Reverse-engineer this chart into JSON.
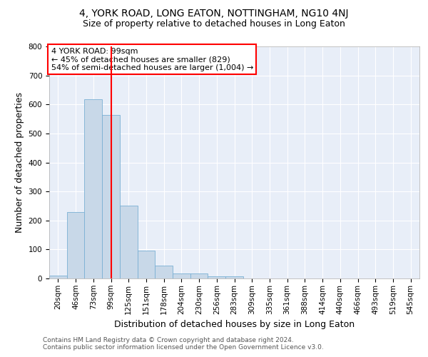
{
  "title": "4, YORK ROAD, LONG EATON, NOTTINGHAM, NG10 4NJ",
  "subtitle": "Size of property relative to detached houses in Long Eaton",
  "xlabel": "Distribution of detached houses by size in Long Eaton",
  "ylabel": "Number of detached properties",
  "categories": [
    "20sqm",
    "46sqm",
    "73sqm",
    "99sqm",
    "125sqm",
    "151sqm",
    "178sqm",
    "204sqm",
    "230sqm",
    "256sqm",
    "283sqm",
    "309sqm",
    "335sqm",
    "361sqm",
    "388sqm",
    "414sqm",
    "440sqm",
    "466sqm",
    "493sqm",
    "519sqm",
    "545sqm"
  ],
  "values": [
    10,
    228,
    618,
    563,
    252,
    96,
    44,
    18,
    18,
    8,
    8,
    0,
    0,
    0,
    0,
    0,
    0,
    0,
    0,
    0,
    0
  ],
  "bar_color": "#c8d8e8",
  "bar_edge_color": "#7ab0d4",
  "vline_x": 3,
  "vline_color": "red",
  "annotation_line1": "4 YORK ROAD: 99sqm",
  "annotation_line2": "← 45% of detached houses are smaller (829)",
  "annotation_line3": "54% of semi-detached houses are larger (1,004) →",
  "annotation_box_color": "white",
  "annotation_box_edge_color": "red",
  "ylim": [
    0,
    800
  ],
  "yticks": [
    0,
    100,
    200,
    300,
    400,
    500,
    600,
    700,
    800
  ],
  "plot_bg_color": "#e8eef8",
  "footer1": "Contains HM Land Registry data © Crown copyright and database right 2024.",
  "footer2": "Contains public sector information licensed under the Open Government Licence v3.0.",
  "title_fontsize": 10,
  "subtitle_fontsize": 9,
  "tick_fontsize": 7.5,
  "label_fontsize": 9,
  "annotation_fontsize": 8,
  "footer_fontsize": 6.5
}
